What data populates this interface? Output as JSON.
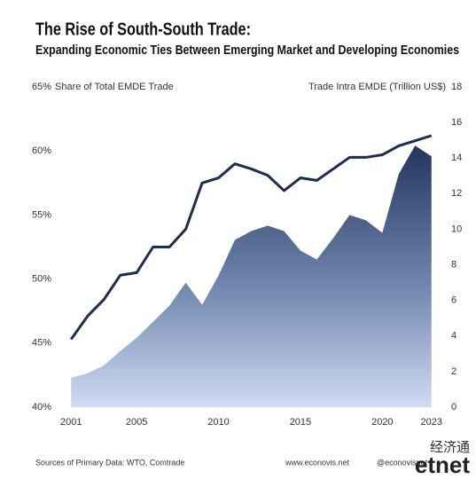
{
  "chart_data": {
    "type": "line",
    "title": "The Rise of South-South Trade:",
    "subtitle": "Expanding Economic Ties Between Emerging Market and Developing Economies",
    "ylabel": "Share of Total EMDE Trade",
    "y2label": "Trade Intra EMDE (Trillion US$)",
    "x": [
      2001,
      2002,
      2003,
      2004,
      2005,
      2006,
      2007,
      2008,
      2009,
      2010,
      2011,
      2012,
      2013,
      2014,
      2015,
      2016,
      2017,
      2018,
      2019,
      2020,
      2021,
      2022,
      2023
    ],
    "series": [
      {
        "type": "line",
        "axis": "y",
        "color": "#1e2d4f",
        "values": [
          45.3,
          47.1,
          48.4,
          50.3,
          50.5,
          52.5,
          52.5,
          53.9,
          57.5,
          57.9,
          59.0,
          58.6,
          58.1,
          56.9,
          57.9,
          57.7,
          58.6,
          59.5,
          59.5,
          59.7,
          60.4,
          60.8,
          61.2
        ]
      },
      {
        "type": "area",
        "axis": "y2",
        "color": "#2b3d66",
        "values": [
          1.65,
          1.9,
          2.35,
          3.15,
          3.9,
          4.8,
          5.7,
          7.0,
          5.75,
          7.4,
          9.4,
          9.9,
          10.2,
          9.9,
          8.8,
          8.3,
          9.5,
          10.8,
          10.5,
          9.8,
          13.1,
          14.7,
          14.1
        ]
      }
    ],
    "xlim": [
      2000.5,
      2023.5
    ],
    "xticks": [
      2001,
      2005,
      2010,
      2015,
      2020,
      2023
    ],
    "ylim": [
      40,
      65
    ],
    "yticks": [
      {
        "value": 40,
        "label": "40%"
      },
      {
        "value": 45,
        "label": "45%"
      },
      {
        "value": 50,
        "label": "50%"
      },
      {
        "value": 55,
        "label": "55%"
      },
      {
        "value": 60,
        "label": "60%"
      },
      {
        "value": 65,
        "label": "65%"
      }
    ],
    "y2lim": [
      0,
      18
    ],
    "y2ticks": [
      0,
      2,
      4,
      6,
      8,
      10,
      12,
      14,
      16,
      18
    ]
  },
  "footer": {
    "source": "Sources of Primary Data: WTO, Comtrade",
    "website": "www.econovis.net",
    "social": "@econovisnet",
    "logo_cn": "经济通",
    "logo_en": "etnet"
  }
}
